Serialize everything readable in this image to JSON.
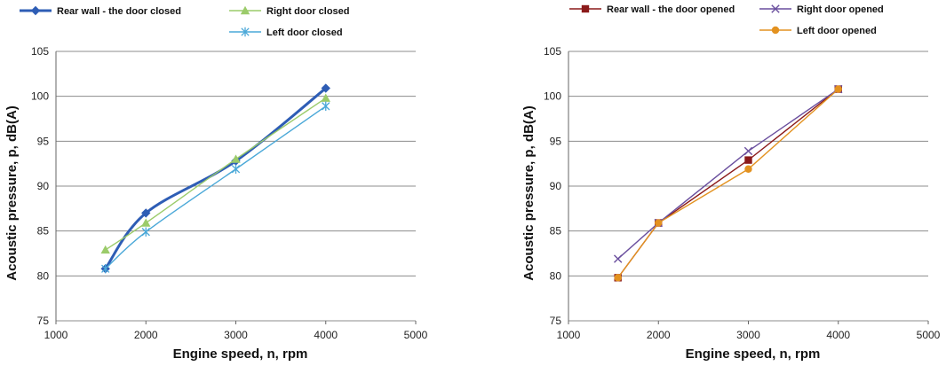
{
  "chart_data": [
    {
      "type": "line",
      "xlabel": "Engine speed, n, rpm",
      "ylabel": "Acoustic pressure, p, dB(A)",
      "xlim": [
        1000,
        5000
      ],
      "ylim": [
        75,
        105
      ],
      "x_ticks": [
        "1000",
        "2000",
        "3000",
        "4000",
        "5000"
      ],
      "y_ticks": [
        "75",
        "80",
        "85",
        "90",
        "95",
        "100",
        "105"
      ],
      "grid": "horizontal",
      "legend": "top",
      "series": [
        {
          "name": "Rear wall - the door closed",
          "color": "#2e5db5",
          "marker": "diamond",
          "x": [
            1550,
            2000,
            3000,
            4000
          ],
          "y": [
            80.8,
            87,
            92.8,
            100.9
          ]
        },
        {
          "name": "Right door closed",
          "color": "#9bcb6a",
          "marker": "triangle",
          "x": [
            1550,
            2000,
            3000,
            4000
          ],
          "y": [
            82.9,
            85.9,
            93,
            99.8
          ]
        },
        {
          "name": "Left door closed",
          "color": "#4aa8d8",
          "marker": "asterisk",
          "x": [
            1550,
            2000,
            3000,
            4000
          ],
          "y": [
            80.8,
            84.9,
            91.9,
            98.9
          ]
        }
      ]
    },
    {
      "type": "line",
      "xlabel": "Engine speed, n, rpm",
      "ylabel": "Acoustic pressure, p, dB(A)",
      "xlim": [
        1000,
        5000
      ],
      "ylim": [
        75,
        105
      ],
      "x_ticks": [
        "1000",
        "2000",
        "3000",
        "4000",
        "5000"
      ],
      "y_ticks": [
        "75",
        "80",
        "85",
        "90",
        "95",
        "100",
        "105"
      ],
      "grid": "horizontal",
      "legend": "top",
      "series": [
        {
          "name": "Rear wall - the door opened",
          "color": "#8b1a1a",
          "marker": "square",
          "x": [
            1550,
            2000,
            3000,
            4000
          ],
          "y": [
            79.8,
            85.9,
            92.9,
            100.8
          ]
        },
        {
          "name": "Right door opened",
          "color": "#6a4f9e",
          "marker": "x",
          "x": [
            1550,
            2000,
            3000,
            4000
          ],
          "y": [
            81.9,
            85.9,
            93.9,
            100.8
          ]
        },
        {
          "name": "Left door opened",
          "color": "#e39220",
          "marker": "circle",
          "x": [
            1550,
            2000,
            3000,
            4000
          ],
          "y": [
            79.8,
            85.9,
            91.9,
            100.8
          ]
        }
      ]
    }
  ]
}
